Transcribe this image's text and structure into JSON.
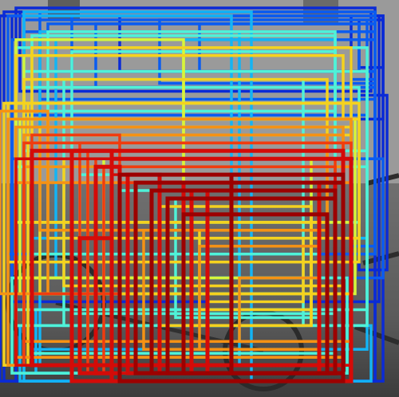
{
  "image": {
    "subject": "proposal-heatmap",
    "palette": [
      "#0a2bd6",
      "#0b5cf0",
      "#13b4f5",
      "#4ff2d8",
      "#d7f53a",
      "#f5d21e",
      "#f59214",
      "#f03c0f",
      "#d40b08",
      "#9c0000"
    ]
  },
  "boxes": [
    [
      0.01,
      0.03,
      0.93,
      0.93,
      0.0
    ],
    [
      0.04,
      0.02,
      0.9,
      0.94,
      0.02
    ],
    [
      0.0,
      0.04,
      0.96,
      0.92,
      0.03
    ],
    [
      0.03,
      0.04,
      0.92,
      0.72,
      0.05
    ],
    [
      0.05,
      0.03,
      0.88,
      0.2,
      0.05
    ],
    [
      0.06,
      0.05,
      0.86,
      0.24,
      0.07
    ],
    [
      0.1,
      0.03,
      0.84,
      0.22,
      0.06
    ],
    [
      0.18,
      0.04,
      0.76,
      0.18,
      0.08
    ],
    [
      0.24,
      0.06,
      0.7,
      0.16,
      0.09
    ],
    [
      0.3,
      0.04,
      0.64,
      0.14,
      0.04
    ],
    [
      0.4,
      0.05,
      0.54,
      0.16,
      0.1
    ],
    [
      0.5,
      0.06,
      0.44,
      0.12,
      0.06
    ],
    [
      0.02,
      0.04,
      0.92,
      0.6,
      0.12
    ],
    [
      0.88,
      0.04,
      0.08,
      0.26,
      0.03
    ],
    [
      0.9,
      0.05,
      0.06,
      0.12,
      0.05
    ],
    [
      0.12,
      0.06,
      0.78,
      0.12,
      0.14
    ],
    [
      0.06,
      0.08,
      0.88,
      0.32,
      0.12
    ],
    [
      0.03,
      0.1,
      0.91,
      0.54,
      0.1
    ],
    [
      0.88,
      0.2,
      0.06,
      0.42,
      0.08
    ],
    [
      0.9,
      0.24,
      0.07,
      0.44,
      0.05
    ],
    [
      0.03,
      0.4,
      0.93,
      0.3,
      0.1
    ],
    [
      0.06,
      0.04,
      0.52,
      0.9,
      0.18
    ],
    [
      0.06,
      0.03,
      0.57,
      0.93,
      0.22
    ],
    [
      0.1,
      0.08,
      0.5,
      0.84,
      0.24
    ],
    [
      0.08,
      0.09,
      0.76,
      0.8,
      0.28
    ],
    [
      0.04,
      0.12,
      0.88,
      0.7,
      0.3
    ],
    [
      0.14,
      0.1,
      0.7,
      0.6,
      0.26
    ],
    [
      0.18,
      0.13,
      0.66,
      0.66,
      0.32
    ],
    [
      0.12,
      0.08,
      0.72,
      0.2,
      0.3
    ],
    [
      0.06,
      0.18,
      0.86,
      0.2,
      0.34
    ],
    [
      0.16,
      0.2,
      0.6,
      0.62,
      0.36
    ],
    [
      0.04,
      0.42,
      0.88,
      0.36,
      0.3
    ],
    [
      0.08,
      0.6,
      0.84,
      0.28,
      0.26
    ],
    [
      0.03,
      0.7,
      0.84,
      0.24,
      0.28
    ],
    [
      0.09,
      0.78,
      0.78,
      0.16,
      0.22
    ],
    [
      0.08,
      0.64,
      0.72,
      0.28,
      0.32
    ],
    [
      0.05,
      0.82,
      0.88,
      0.14,
      0.24
    ],
    [
      0.2,
      0.44,
      0.58,
      0.3,
      0.34
    ],
    [
      0.3,
      0.48,
      0.5,
      0.34,
      0.38
    ],
    [
      0.26,
      0.4,
      0.52,
      0.3,
      0.4
    ],
    [
      0.44,
      0.5,
      0.36,
      0.3,
      0.36
    ],
    [
      0.06,
      0.22,
      0.84,
      0.34,
      0.38
    ],
    [
      0.04,
      0.1,
      0.42,
      0.6,
      0.44
    ],
    [
      0.06,
      0.14,
      0.4,
      0.56,
      0.48
    ],
    [
      0.08,
      0.12,
      0.8,
      0.22,
      0.5
    ],
    [
      0.06,
      0.2,
      0.76,
      0.36,
      0.52
    ],
    [
      0.04,
      0.26,
      0.84,
      0.3,
      0.46
    ],
    [
      0.12,
      0.3,
      0.78,
      0.3,
      0.5
    ],
    [
      0.02,
      0.26,
      0.88,
      0.4,
      0.54
    ],
    [
      0.05,
      0.3,
      0.84,
      0.44,
      0.48
    ],
    [
      0.1,
      0.32,
      0.78,
      0.42,
      0.56
    ],
    [
      0.16,
      0.4,
      0.7,
      0.32,
      0.52
    ],
    [
      0.4,
      0.52,
      0.38,
      0.3,
      0.5
    ],
    [
      0.46,
      0.54,
      0.32,
      0.28,
      0.54
    ],
    [
      0.5,
      0.58,
      0.28,
      0.2,
      0.58
    ],
    [
      0.52,
      0.6,
      0.24,
      0.16,
      0.56
    ],
    [
      0.01,
      0.26,
      0.06,
      0.66,
      0.5
    ],
    [
      0.04,
      0.14,
      0.82,
      0.16,
      0.58
    ],
    [
      0.02,
      0.3,
      0.86,
      0.62,
      0.62
    ],
    [
      0.04,
      0.32,
      0.82,
      0.58,
      0.66
    ],
    [
      0.0,
      0.28,
      0.12,
      0.46,
      0.62
    ],
    [
      0.06,
      0.34,
      0.8,
      0.56,
      0.64
    ],
    [
      0.08,
      0.36,
      0.78,
      0.54,
      0.68
    ],
    [
      0.18,
      0.38,
      0.68,
      0.52,
      0.66
    ],
    [
      0.22,
      0.4,
      0.62,
      0.5,
      0.7
    ],
    [
      0.1,
      0.34,
      0.72,
      0.24,
      0.64
    ],
    [
      0.06,
      0.42,
      0.82,
      0.44,
      0.7
    ],
    [
      0.04,
      0.46,
      0.84,
      0.46,
      0.72
    ],
    [
      0.36,
      0.58,
      0.44,
      0.3,
      0.68
    ],
    [
      0.5,
      0.62,
      0.3,
      0.26,
      0.7
    ],
    [
      0.6,
      0.7,
      0.2,
      0.16,
      0.66
    ],
    [
      0.08,
      0.34,
      0.22,
      0.4,
      0.74
    ],
    [
      0.2,
      0.36,
      0.66,
      0.58,
      0.76
    ],
    [
      0.22,
      0.38,
      0.64,
      0.56,
      0.8
    ],
    [
      0.24,
      0.4,
      0.6,
      0.54,
      0.82
    ],
    [
      0.26,
      0.42,
      0.58,
      0.52,
      0.78
    ],
    [
      0.28,
      0.44,
      0.56,
      0.5,
      0.84
    ],
    [
      0.3,
      0.46,
      0.54,
      0.48,
      0.8
    ],
    [
      0.06,
      0.36,
      0.82,
      0.56,
      0.82
    ],
    [
      0.08,
      0.38,
      0.78,
      0.54,
      0.86
    ],
    [
      0.04,
      0.4,
      0.84,
      0.52,
      0.84
    ],
    [
      0.18,
      0.38,
      0.1,
      0.58,
      0.86
    ],
    [
      0.24,
      0.42,
      0.06,
      0.52,
      0.9
    ],
    [
      0.32,
      0.44,
      0.08,
      0.5,
      0.88
    ],
    [
      0.4,
      0.46,
      0.06,
      0.48,
      0.92
    ],
    [
      0.48,
      0.48,
      0.04,
      0.46,
      0.9
    ],
    [
      0.28,
      0.4,
      0.6,
      0.56,
      0.94
    ],
    [
      0.3,
      0.44,
      0.56,
      0.52,
      0.96
    ],
    [
      0.34,
      0.46,
      0.52,
      0.48,
      0.98
    ],
    [
      0.38,
      0.48,
      0.46,
      0.46,
      1.0
    ],
    [
      0.42,
      0.5,
      0.42,
      0.44,
      0.97
    ],
    [
      0.46,
      0.54,
      0.36,
      0.4,
      0.99
    ],
    [
      0.2,
      0.6,
      0.08,
      0.34,
      0.93
    ],
    [
      0.58,
      0.44,
      0.28,
      0.5,
      0.95
    ],
    [
      0.8,
      0.46,
      0.04,
      0.48,
      0.91
    ]
  ]
}
